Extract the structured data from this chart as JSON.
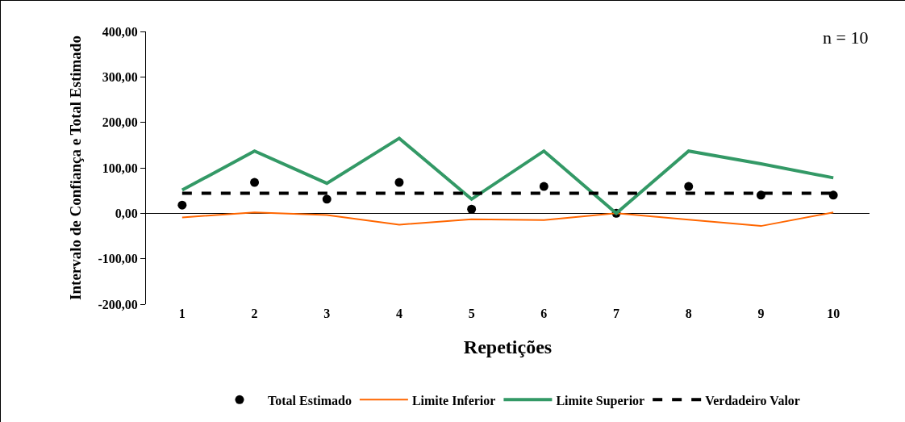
{
  "chart_data": {
    "type": "line",
    "xlabel": "Repetições",
    "ylabel": "Intervalo de Confiança e Total Estimado",
    "categories": [
      "1",
      "2",
      "3",
      "4",
      "5",
      "6",
      "7",
      "8",
      "9",
      "10"
    ],
    "series": [
      {
        "name": "Total Estimado",
        "type": "scatter",
        "marker": "circle",
        "color": "#000000",
        "values": [
          18,
          68,
          31,
          68,
          9,
          59,
          0,
          59,
          40,
          40
        ]
      },
      {
        "name": "Limite Inferior",
        "color": "#ff6600",
        "values": [
          -9,
          2,
          -4,
          -25,
          -13,
          -15,
          0,
          -14,
          -28,
          2
        ]
      },
      {
        "name": "Limite Superior",
        "color": "#339966",
        "values": [
          51,
          137,
          66,
          165,
          31,
          137,
          0,
          137,
          109,
          78
        ]
      }
    ],
    "ref_lines": [
      {
        "axis": "y",
        "value": 44,
        "label": "Verdadeiro Valor",
        "color": "#000000",
        "line_style": "dashed"
      }
    ],
    "ylim": [
      -200,
      400
    ],
    "yticks": [
      {
        "value": -200,
        "label": "-200,00"
      },
      {
        "value": -100,
        "label": "-100,00"
      },
      {
        "value": 0,
        "label": "0,00"
      },
      {
        "value": 100,
        "label": "100,00"
      },
      {
        "value": 200,
        "label": "200,00"
      },
      {
        "value": 300,
        "label": "300,00"
      },
      {
        "value": 400,
        "label": "400,00"
      }
    ],
    "annotations": [
      "n = 10"
    ],
    "legend": "bottom"
  }
}
